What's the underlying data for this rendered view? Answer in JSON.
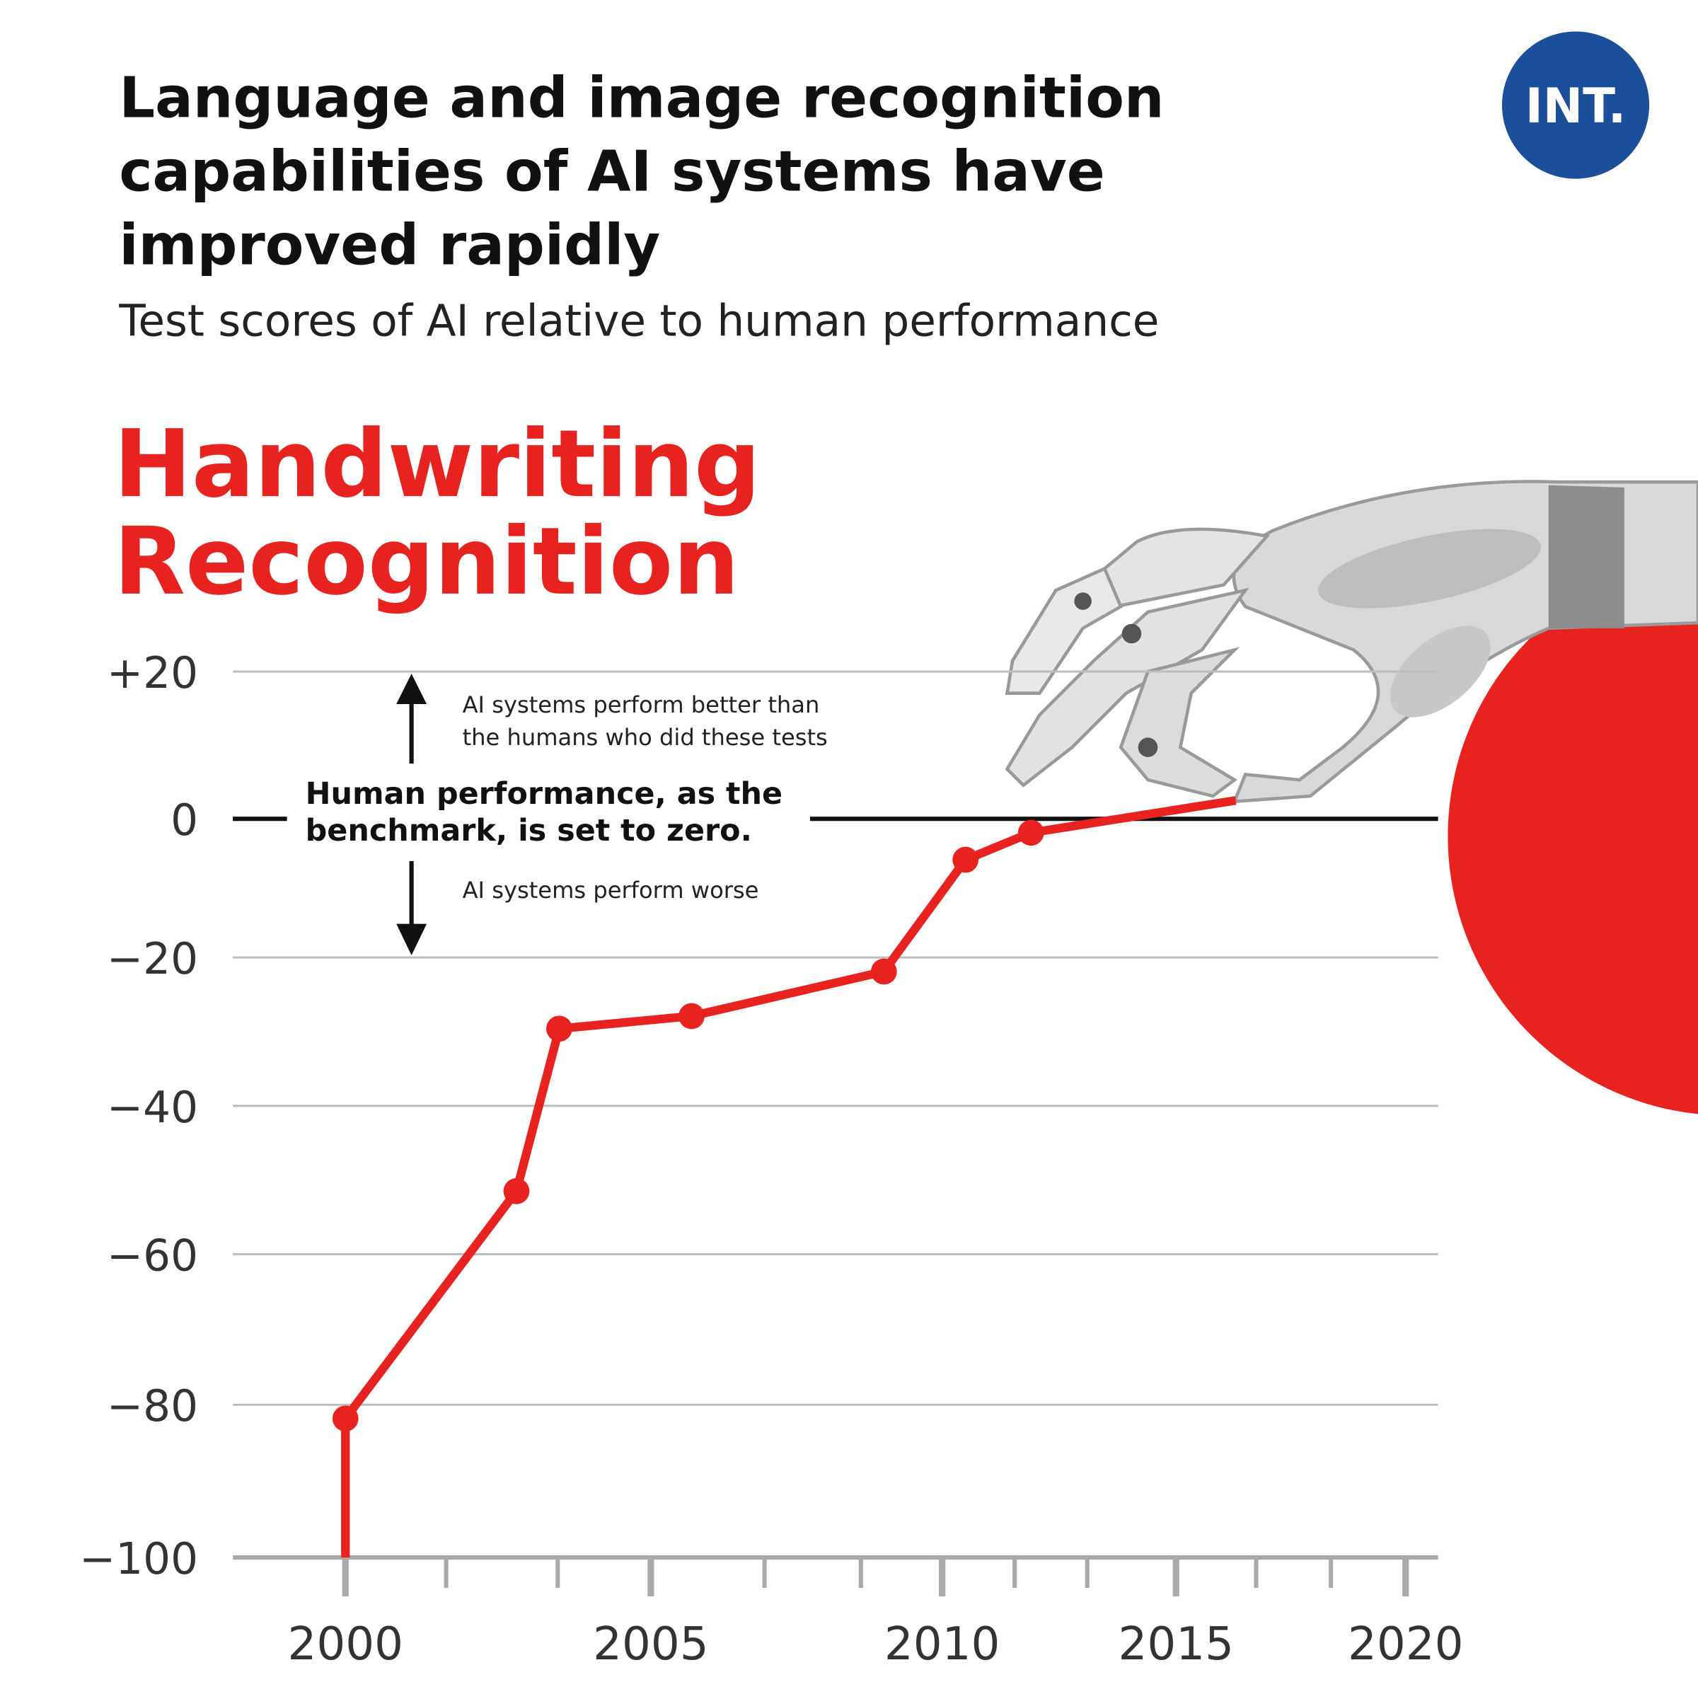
{
  "header": {
    "title_lines": [
      "Language and image recognition",
      "capabilities of AI systems have",
      "improved rapidly"
    ],
    "subtitle": "Test scores of AI relative to human performance",
    "logo": "INT."
  },
  "colors": {
    "accent": "#e8231f",
    "logo_bg": "#1b4e9b",
    "grid": "#bdbdbd"
  },
  "chart_data": {
    "type": "line",
    "title": "Handwriting Recognition",
    "title_lines": [
      "Handwriting",
      "Recognition"
    ],
    "xlabel": "",
    "ylabel": "",
    "ylim": [
      -100,
      20
    ],
    "y_ticks": [
      20,
      0,
      -20,
      -40,
      -60,
      -80,
      -100
    ],
    "y_tick_labels": [
      "+20",
      "0",
      "−20",
      "−40",
      "−60",
      "−80",
      "−100"
    ],
    "x_tick_labels": [
      "2000",
      "2005",
      "2010",
      "2015",
      "2020"
    ],
    "x_ticks": [
      2000,
      2005,
      2010,
      2015,
      2020
    ],
    "grid": true,
    "series": [
      {
        "name": "Handwriting Recognition",
        "color": "#e8231f",
        "x": [
          2000,
          2000,
          2002.8,
          2003.5,
          2005.7,
          2009.0,
          2010.5,
          2011.9,
          2016.3
        ],
        "y": [
          -100,
          -81.8,
          -51.5,
          -29.6,
          -27.9,
          -21.9,
          -5.9,
          -2.0,
          2.5
        ],
        "markers": [
          false,
          true,
          true,
          true,
          true,
          true,
          true,
          true,
          false
        ]
      }
    ],
    "annotations": {
      "above": [
        "AI systems perform better than",
        "the humans who did these tests"
      ],
      "benchmark": [
        "Human performance, as the",
        "benchmark, is set to zero."
      ],
      "below": "AI systems perform worse"
    }
  }
}
